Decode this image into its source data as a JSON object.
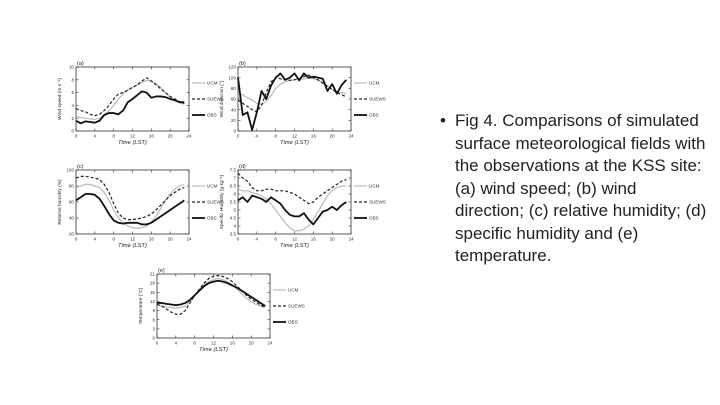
{
  "caption": {
    "bullet": "•",
    "text": "Fig 4. Comparisons of simulated surface meteorological fields with the observations at the KSS site: (a) wind speed; (b) wind direction; (c) relative humidity; (d) specific humidity and (e) temperature."
  },
  "chart_data": [
    {
      "type": "line",
      "panel_label": "(a)",
      "xlabel": "Time (LST)",
      "ylabel": "Wind speed (m s⁻¹)",
      "xlim": [
        0,
        24
      ],
      "ylim": [
        0,
        10
      ],
      "xticks": [
        0,
        4,
        8,
        12,
        16,
        20,
        24
      ],
      "yticks": [
        0,
        2,
        4,
        6,
        8,
        10
      ],
      "legend": "right",
      "x": [
        0,
        1,
        2,
        3,
        4,
        5,
        6,
        7,
        8,
        9,
        10,
        11,
        12,
        13,
        14,
        15,
        16,
        17,
        18,
        19,
        20,
        21,
        22,
        23
      ],
      "series": [
        {
          "name": "UCM",
          "style": "solid",
          "color": "#bbbbbb",
          "values": [
            2.3,
            2.1,
            2.0,
            1.9,
            1.8,
            2.0,
            2.5,
            3.2,
            4.0,
            5.0,
            5.8,
            6.4,
            6.8,
            7.2,
            7.6,
            7.9,
            7.8,
            7.4,
            6.8,
            6.0,
            5.3,
            4.8,
            4.4,
            4.2
          ]
        },
        {
          "name": "SUEWS",
          "style": "dashed",
          "color": "#222222",
          "values": [
            3.5,
            3.2,
            3.0,
            2.6,
            2.4,
            2.6,
            3.2,
            4.0,
            5.0,
            5.8,
            6.0,
            6.4,
            6.8,
            7.2,
            7.8,
            8.3,
            7.8,
            7.2,
            6.6,
            6.0,
            5.4,
            5.0,
            4.6,
            4.3
          ]
        },
        {
          "name": "OBS",
          "style": "solid-thick",
          "color": "#111111",
          "values": [
            1.6,
            1.2,
            1.5,
            1.4,
            1.3,
            1.6,
            2.5,
            2.8,
            2.8,
            2.6,
            3.2,
            4.5,
            5.0,
            5.6,
            6.2,
            6.0,
            5.2,
            5.4,
            5.4,
            5.3,
            5.0,
            4.8,
            4.5,
            4.5
          ]
        }
      ]
    },
    {
      "type": "line",
      "panel_label": "(b)",
      "xlabel": "Time (LST)",
      "ylabel": "Wind direction (°)",
      "xlim": [
        0,
        24
      ],
      "ylim": [
        0,
        120
      ],
      "xticks": [
        0,
        4,
        8,
        12,
        16,
        20,
        24
      ],
      "yticks": [
        0,
        20,
        40,
        60,
        80,
        100,
        120
      ],
      "legend": "right",
      "x": [
        0,
        1,
        2,
        3,
        4,
        5,
        6,
        7,
        8,
        9,
        10,
        11,
        12,
        13,
        14,
        15,
        16,
        17,
        18,
        19,
        20,
        21,
        22,
        23
      ],
      "series": [
        {
          "name": "UCM",
          "style": "solid",
          "color": "#bbbbbb",
          "values": [
            70,
            68,
            62,
            58,
            52,
            50,
            56,
            66,
            80,
            88,
            92,
            95,
            96,
            97,
            98,
            99,
            98,
            95,
            90,
            84,
            78,
            74,
            72,
            70
          ]
        },
        {
          "name": "SUEWS",
          "style": "dashed",
          "color": "#222222",
          "values": [
            58,
            52,
            46,
            40,
            36,
            48,
            72,
            92,
            100,
            98,
            96,
            95,
            96,
            98,
            102,
            105,
            100,
            96,
            90,
            84,
            78,
            72,
            68,
            64
          ]
        },
        {
          "name": "OBS",
          "style": "solid-thick",
          "color": "#111111",
          "values": [
            100,
            30,
            35,
            2,
            35,
            75,
            60,
            85,
            100,
            108,
            96,
            100,
            108,
            95,
            108,
            100,
            102,
            100,
            98,
            75,
            88,
            70,
            86,
            96
          ]
        }
      ]
    },
    {
      "type": "line",
      "panel_label": "(c)",
      "xlabel": "Time (LST)",
      "ylabel": "Relative humidity (%)",
      "xlim": [
        0,
        24
      ],
      "ylim": [
        20,
        100
      ],
      "xticks": [
        0,
        4,
        8,
        12,
        16,
        20,
        24
      ],
      "yticks": [
        20,
        40,
        60,
        80,
        100
      ],
      "legend": "right",
      "x": [
        0,
        1,
        2,
        3,
        4,
        5,
        6,
        7,
        8,
        9,
        10,
        11,
        12,
        13,
        14,
        15,
        16,
        17,
        18,
        19,
        20,
        21,
        22,
        23
      ],
      "series": [
        {
          "name": "UCM",
          "style": "solid",
          "color": "#bbbbbb",
          "values": [
            78,
            80,
            82,
            82,
            80,
            78,
            72,
            62,
            50,
            40,
            34,
            30,
            28,
            27,
            28,
            30,
            35,
            42,
            52,
            62,
            70,
            76,
            80,
            82
          ]
        },
        {
          "name": "SUEWS",
          "style": "dashed",
          "color": "#222222",
          "values": [
            90,
            92,
            92,
            91,
            90,
            88,
            82,
            72,
            58,
            46,
            40,
            38,
            38,
            39,
            40,
            42,
            45,
            50,
            56,
            62,
            68,
            72,
            76,
            78
          ]
        },
        {
          "name": "OBS",
          "style": "solid-thick",
          "color": "#111111",
          "values": [
            62,
            66,
            70,
            70,
            69,
            64,
            55,
            45,
            37,
            34,
            33,
            34,
            34,
            34,
            32,
            32,
            34,
            38,
            42,
            46,
            50,
            54,
            58,
            62
          ]
        }
      ]
    },
    {
      "type": "line",
      "panel_label": "(d)",
      "xlabel": "Time (LST)",
      "ylabel": "Specific Humidity (g kg⁻¹)",
      "xlim": [
        0,
        24
      ],
      "ylim": [
        3.5,
        7.5
      ],
      "xticks": [
        0,
        4,
        8,
        12,
        16,
        20,
        24
      ],
      "yticks": [
        3.5,
        4.0,
        4.5,
        5.0,
        5.5,
        6.0,
        6.5,
        7.0,
        7.5
      ],
      "legend": "right",
      "x": [
        0,
        1,
        2,
        3,
        4,
        5,
        6,
        7,
        8,
        9,
        10,
        11,
        12,
        13,
        14,
        15,
        16,
        17,
        18,
        19,
        20,
        21,
        22,
        23
      ],
      "series": [
        {
          "name": "UCM",
          "style": "solid",
          "color": "#bbbbbb",
          "values": [
            6.3,
            6.2,
            6.2,
            6.1,
            6.0,
            5.9,
            5.7,
            5.4,
            5.0,
            4.6,
            4.2,
            3.9,
            3.7,
            3.7,
            3.8,
            4.0,
            4.4,
            4.9,
            5.4,
            5.9,
            6.2,
            6.4,
            6.5,
            6.5
          ]
        },
        {
          "name": "SUEWS",
          "style": "dashed",
          "color": "#222222",
          "values": [
            7.3,
            7.0,
            6.8,
            6.4,
            6.2,
            6.2,
            6.3,
            6.3,
            6.2,
            6.2,
            6.2,
            6.1,
            6.0,
            5.8,
            5.6,
            5.4,
            5.5,
            5.8,
            6.0,
            6.2,
            6.4,
            6.6,
            6.8,
            6.9
          ]
        },
        {
          "name": "OBS",
          "style": "solid-thick",
          "color": "#111111",
          "values": [
            5.6,
            5.8,
            5.5,
            5.9,
            5.8,
            5.7,
            5.5,
            5.8,
            5.6,
            5.4,
            5.0,
            4.7,
            4.6,
            4.6,
            4.8,
            4.4,
            4.1,
            4.5,
            4.9,
            5.0,
            5.2,
            5.0,
            5.3,
            5.5
          ]
        }
      ]
    },
    {
      "type": "line",
      "panel_label": "(e)",
      "xlabel": "Time (LST)",
      "ylabel": "Temperature (°C)",
      "xlim": [
        0,
        24
      ],
      "ylim": [
        0,
        21
      ],
      "xticks": [
        0,
        4,
        8,
        12,
        16,
        20,
        24
      ],
      "yticks": [
        0,
        3,
        6,
        9,
        12,
        15,
        18,
        21
      ],
      "legend": "right",
      "x": [
        0,
        1,
        2,
        3,
        4,
        5,
        6,
        7,
        8,
        9,
        10,
        11,
        12,
        13,
        14,
        15,
        16,
        17,
        18,
        19,
        20,
        21,
        22,
        23
      ],
      "series": [
        {
          "name": "UCM",
          "style": "solid",
          "color": "#bbbbbb",
          "values": [
            11,
            10.5,
            10.2,
            10,
            9.8,
            10,
            10.5,
            12,
            14,
            16,
            17.5,
            18.5,
            19.2,
            19.5,
            19.2,
            18.5,
            17.5,
            16,
            14.5,
            13,
            12,
            11,
            10.5,
            10
          ]
        },
        {
          "name": "SUEWS",
          "style": "dashed",
          "color": "#222222",
          "values": [
            11,
            10.5,
            9.5,
            8.5,
            7.8,
            7.8,
            9,
            11.5,
            14,
            16,
            18,
            19.5,
            20.2,
            20.5,
            20.2,
            19.5,
            18.5,
            17,
            15.5,
            14,
            12.8,
            11.8,
            10.8,
            10
          ]
        },
        {
          "name": "OBS",
          "style": "solid-thick",
          "color": "#111111",
          "values": [
            11.5,
            11.5,
            11.2,
            11,
            10.8,
            11,
            11.5,
            12.5,
            14,
            15.5,
            17,
            18,
            18.5,
            18.8,
            18.5,
            18,
            17.2,
            16.5,
            15.5,
            14.5,
            13.5,
            12.5,
            11.5,
            10.5
          ]
        }
      ]
    }
  ]
}
